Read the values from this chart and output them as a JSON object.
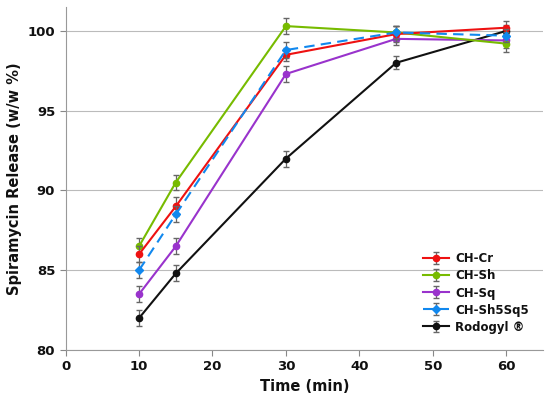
{
  "time": [
    10,
    15,
    30,
    45,
    60
  ],
  "series": {
    "CH-Cr": {
      "y": [
        86.0,
        89.0,
        98.5,
        99.8,
        100.2
      ],
      "yerr": [
        0.5,
        0.6,
        0.4,
        0.5,
        0.4
      ],
      "color": "#EE1111",
      "linestyle": "-",
      "marker": "o",
      "dashes": null,
      "zorder": 5
    },
    "CH-Sh": {
      "y": [
        86.5,
        90.5,
        100.3,
        99.9,
        99.2
      ],
      "yerr": [
        0.5,
        0.5,
        0.5,
        0.4,
        0.5
      ],
      "color": "#77BB00",
      "linestyle": "-",
      "marker": "o",
      "dashes": null,
      "zorder": 4
    },
    "CH-Sq": {
      "y": [
        83.5,
        86.5,
        97.3,
        99.5,
        99.4
      ],
      "yerr": [
        0.5,
        0.5,
        0.5,
        0.4,
        0.5
      ],
      "color": "#9933CC",
      "linestyle": "-",
      "marker": "o",
      "dashes": null,
      "zorder": 3
    },
    "CH-Sh5Sq5": {
      "y": [
        85.0,
        88.5,
        98.8,
        99.9,
        99.7
      ],
      "yerr": [
        0.5,
        0.5,
        0.5,
        0.4,
        0.4
      ],
      "color": "#1188EE",
      "linestyle": "--",
      "marker": "D",
      "dashes": [
        5,
        3
      ],
      "zorder": 6
    },
    "Rodogyl": {
      "y": [
        82.0,
        84.8,
        92.0,
        98.0,
        100.0
      ],
      "yerr": [
        0.5,
        0.5,
        0.5,
        0.4,
        0.4
      ],
      "color": "#111111",
      "linestyle": "-",
      "marker": "o",
      "dashes": null,
      "zorder": 2
    }
  },
  "series_order": [
    "CH-Cr",
    "CH-Sh",
    "CH-Sq",
    "CH-Sh5Sq5",
    "Rodogyl"
  ],
  "legend_labels": [
    "CH-Cr",
    "CH-Sh",
    "CH-Sq",
    "CH-Sh5Sq5",
    "Rodogyl ®"
  ],
  "xlabel": "Time (min)",
  "ylabel": "Spiramycin Release (w/w %)",
  "xlim": [
    0,
    65
  ],
  "ylim": [
    80,
    101.5
  ],
  "xticks": [
    0,
    10,
    20,
    30,
    40,
    50,
    60
  ],
  "yticks": [
    80,
    85,
    90,
    95,
    100
  ],
  "grid_color": "#BBBBBB",
  "background_color": "#FFFFFF",
  "ecolor": "#666666"
}
